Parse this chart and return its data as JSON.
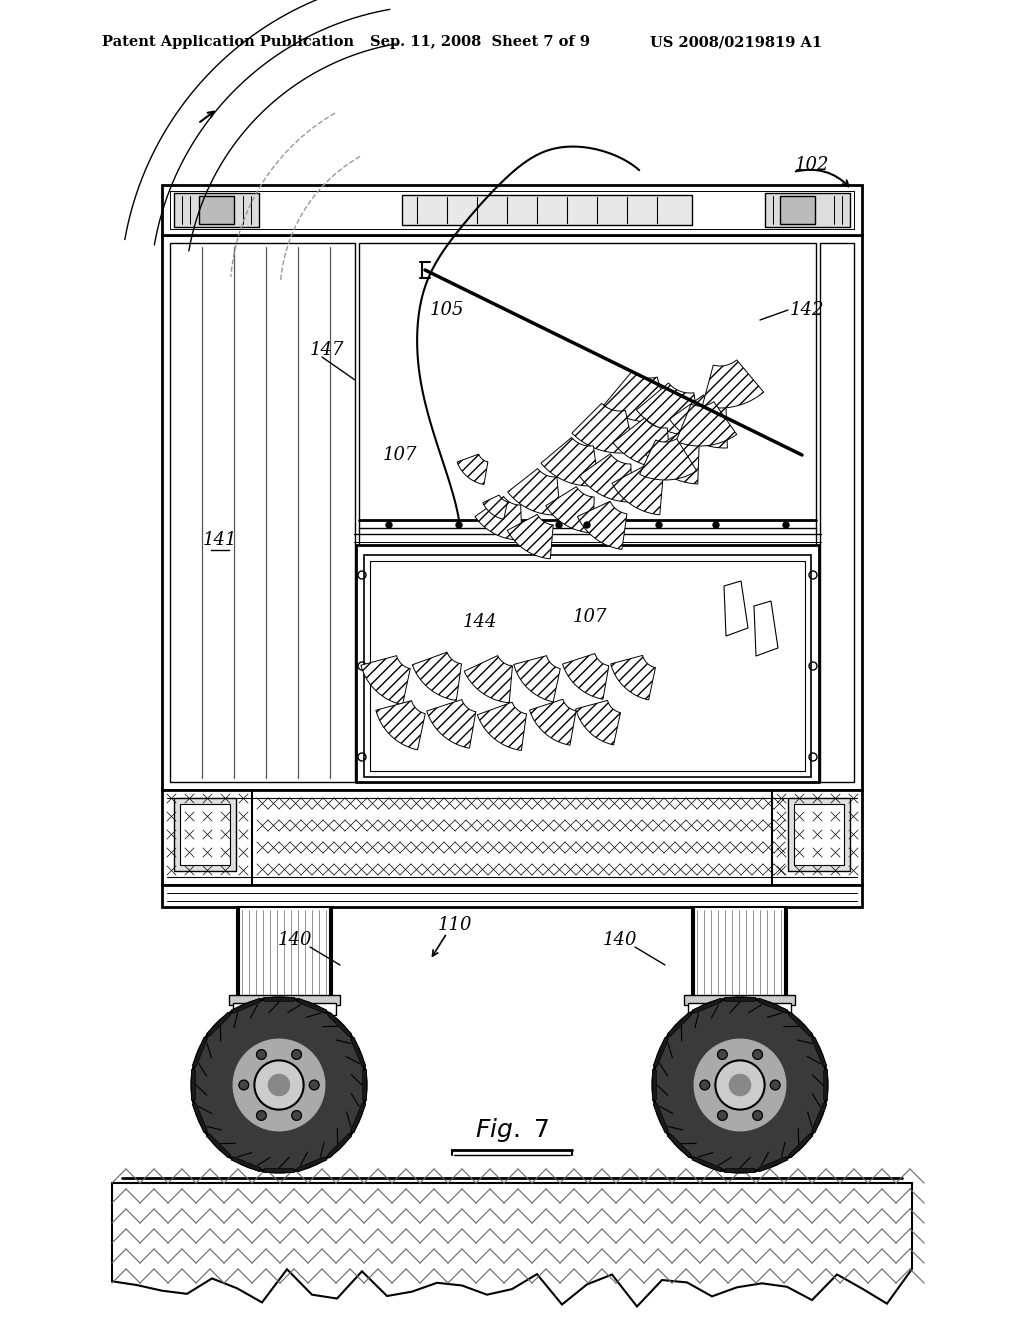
{
  "bg_color": "#ffffff",
  "line_color": "#000000",
  "header_left": "Patent Application Publication",
  "header_center": "Sep. 11, 2008  Sheet 7 of 9",
  "header_right": "US 2008/0219819 A1",
  "label_102": "102",
  "label_142": "142",
  "label_147": "147",
  "label_105": "105",
  "label_107u": "107",
  "label_141": "141",
  "label_144": "144",
  "label_107l": "107",
  "label_140a": "140",
  "label_110": "110",
  "label_140b": "140"
}
